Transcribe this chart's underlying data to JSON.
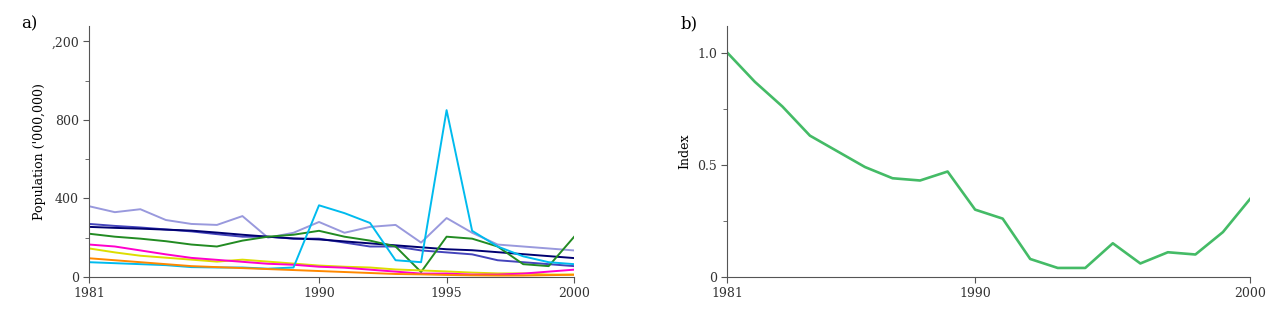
{
  "years_a": [
    1981,
    1982,
    1983,
    1984,
    1985,
    1986,
    1987,
    1988,
    1989,
    1990,
    1991,
    1992,
    1993,
    1994,
    1995,
    1996,
    1997,
    1998,
    1999,
    2000
  ],
  "species": [
    {
      "color": "#9999DD",
      "data": [
        360,
        330,
        345,
        290,
        270,
        265,
        310,
        200,
        225,
        280,
        225,
        255,
        265,
        175,
        300,
        225,
        165,
        155,
        145,
        135
      ]
    },
    {
      "color": "#4444BB",
      "data": [
        270,
        260,
        252,
        242,
        232,
        218,
        205,
        205,
        195,
        195,
        175,
        155,
        155,
        135,
        125,
        115,
        85,
        75,
        65,
        55
      ]
    },
    {
      "color": "#000070",
      "data": [
        255,
        250,
        246,
        241,
        236,
        226,
        215,
        205,
        196,
        191,
        181,
        171,
        161,
        151,
        141,
        136,
        126,
        116,
        106,
        96
      ]
    },
    {
      "color": "#228B22",
      "data": [
        220,
        205,
        195,
        182,
        165,
        155,
        185,
        205,
        215,
        235,
        205,
        185,
        155,
        25,
        205,
        195,
        155,
        65,
        55,
        205
      ]
    },
    {
      "color": "#DDDD00",
      "data": [
        145,
        125,
        108,
        98,
        88,
        78,
        88,
        78,
        68,
        58,
        52,
        48,
        38,
        33,
        28,
        22,
        18,
        18,
        12,
        12
      ]
    },
    {
      "color": "#FF00CC",
      "data": [
        165,
        155,
        135,
        115,
        97,
        87,
        77,
        67,
        62,
        52,
        47,
        37,
        27,
        17,
        17,
        12,
        12,
        17,
        27,
        37
      ]
    },
    {
      "color": "#00BBEE",
      "data": [
        75,
        70,
        65,
        60,
        50,
        48,
        48,
        42,
        48,
        365,
        325,
        275,
        85,
        75,
        850,
        235,
        155,
        105,
        75,
        65
      ]
    },
    {
      "color": "#FF8800",
      "data": [
        95,
        85,
        75,
        65,
        55,
        50,
        45,
        40,
        35,
        30,
        25,
        20,
        15,
        13,
        10,
        8,
        7,
        7,
        9,
        11
      ]
    }
  ],
  "years_b": [
    1981,
    1982,
    1983,
    1984,
    1985,
    1986,
    1987,
    1988,
    1989,
    1990,
    1991,
    1992,
    1993,
    1994,
    1995,
    1996,
    1997,
    1998,
    1999,
    2000
  ],
  "index_data": [
    1.0,
    0.87,
    0.76,
    0.63,
    0.56,
    0.49,
    0.44,
    0.43,
    0.47,
    0.3,
    0.26,
    0.08,
    0.04,
    0.04,
    0.15,
    0.06,
    0.11,
    0.1,
    0.2,
    0.35
  ],
  "index_color": "#44BB66",
  "ylabel_a": "Population ('000,000)",
  "ylabel_b": "Index",
  "yticks_a": [
    0,
    400,
    800,
    1200
  ],
  "ytick_labels_a": [
    "0",
    "400",
    "800",
    ",200"
  ],
  "ylim_a": [
    0,
    1280
  ],
  "yticks_b": [
    0,
    0.5,
    1.0
  ],
  "ylim_b": [
    0,
    1.12
  ],
  "xticks_a": [
    1981,
    1990,
    1995,
    2000
  ],
  "xtick_labels_a": [
    "1981",
    "1990",
    "1995",
    "2000"
  ],
  "xticks_b": [
    1981,
    1990,
    2000
  ],
  "xtick_labels_b": [
    "1981",
    "1990",
    "2000"
  ],
  "label_a": "a)",
  "label_b": "b)",
  "bg_color": "#FFFFFF",
  "line_width": 1.4
}
